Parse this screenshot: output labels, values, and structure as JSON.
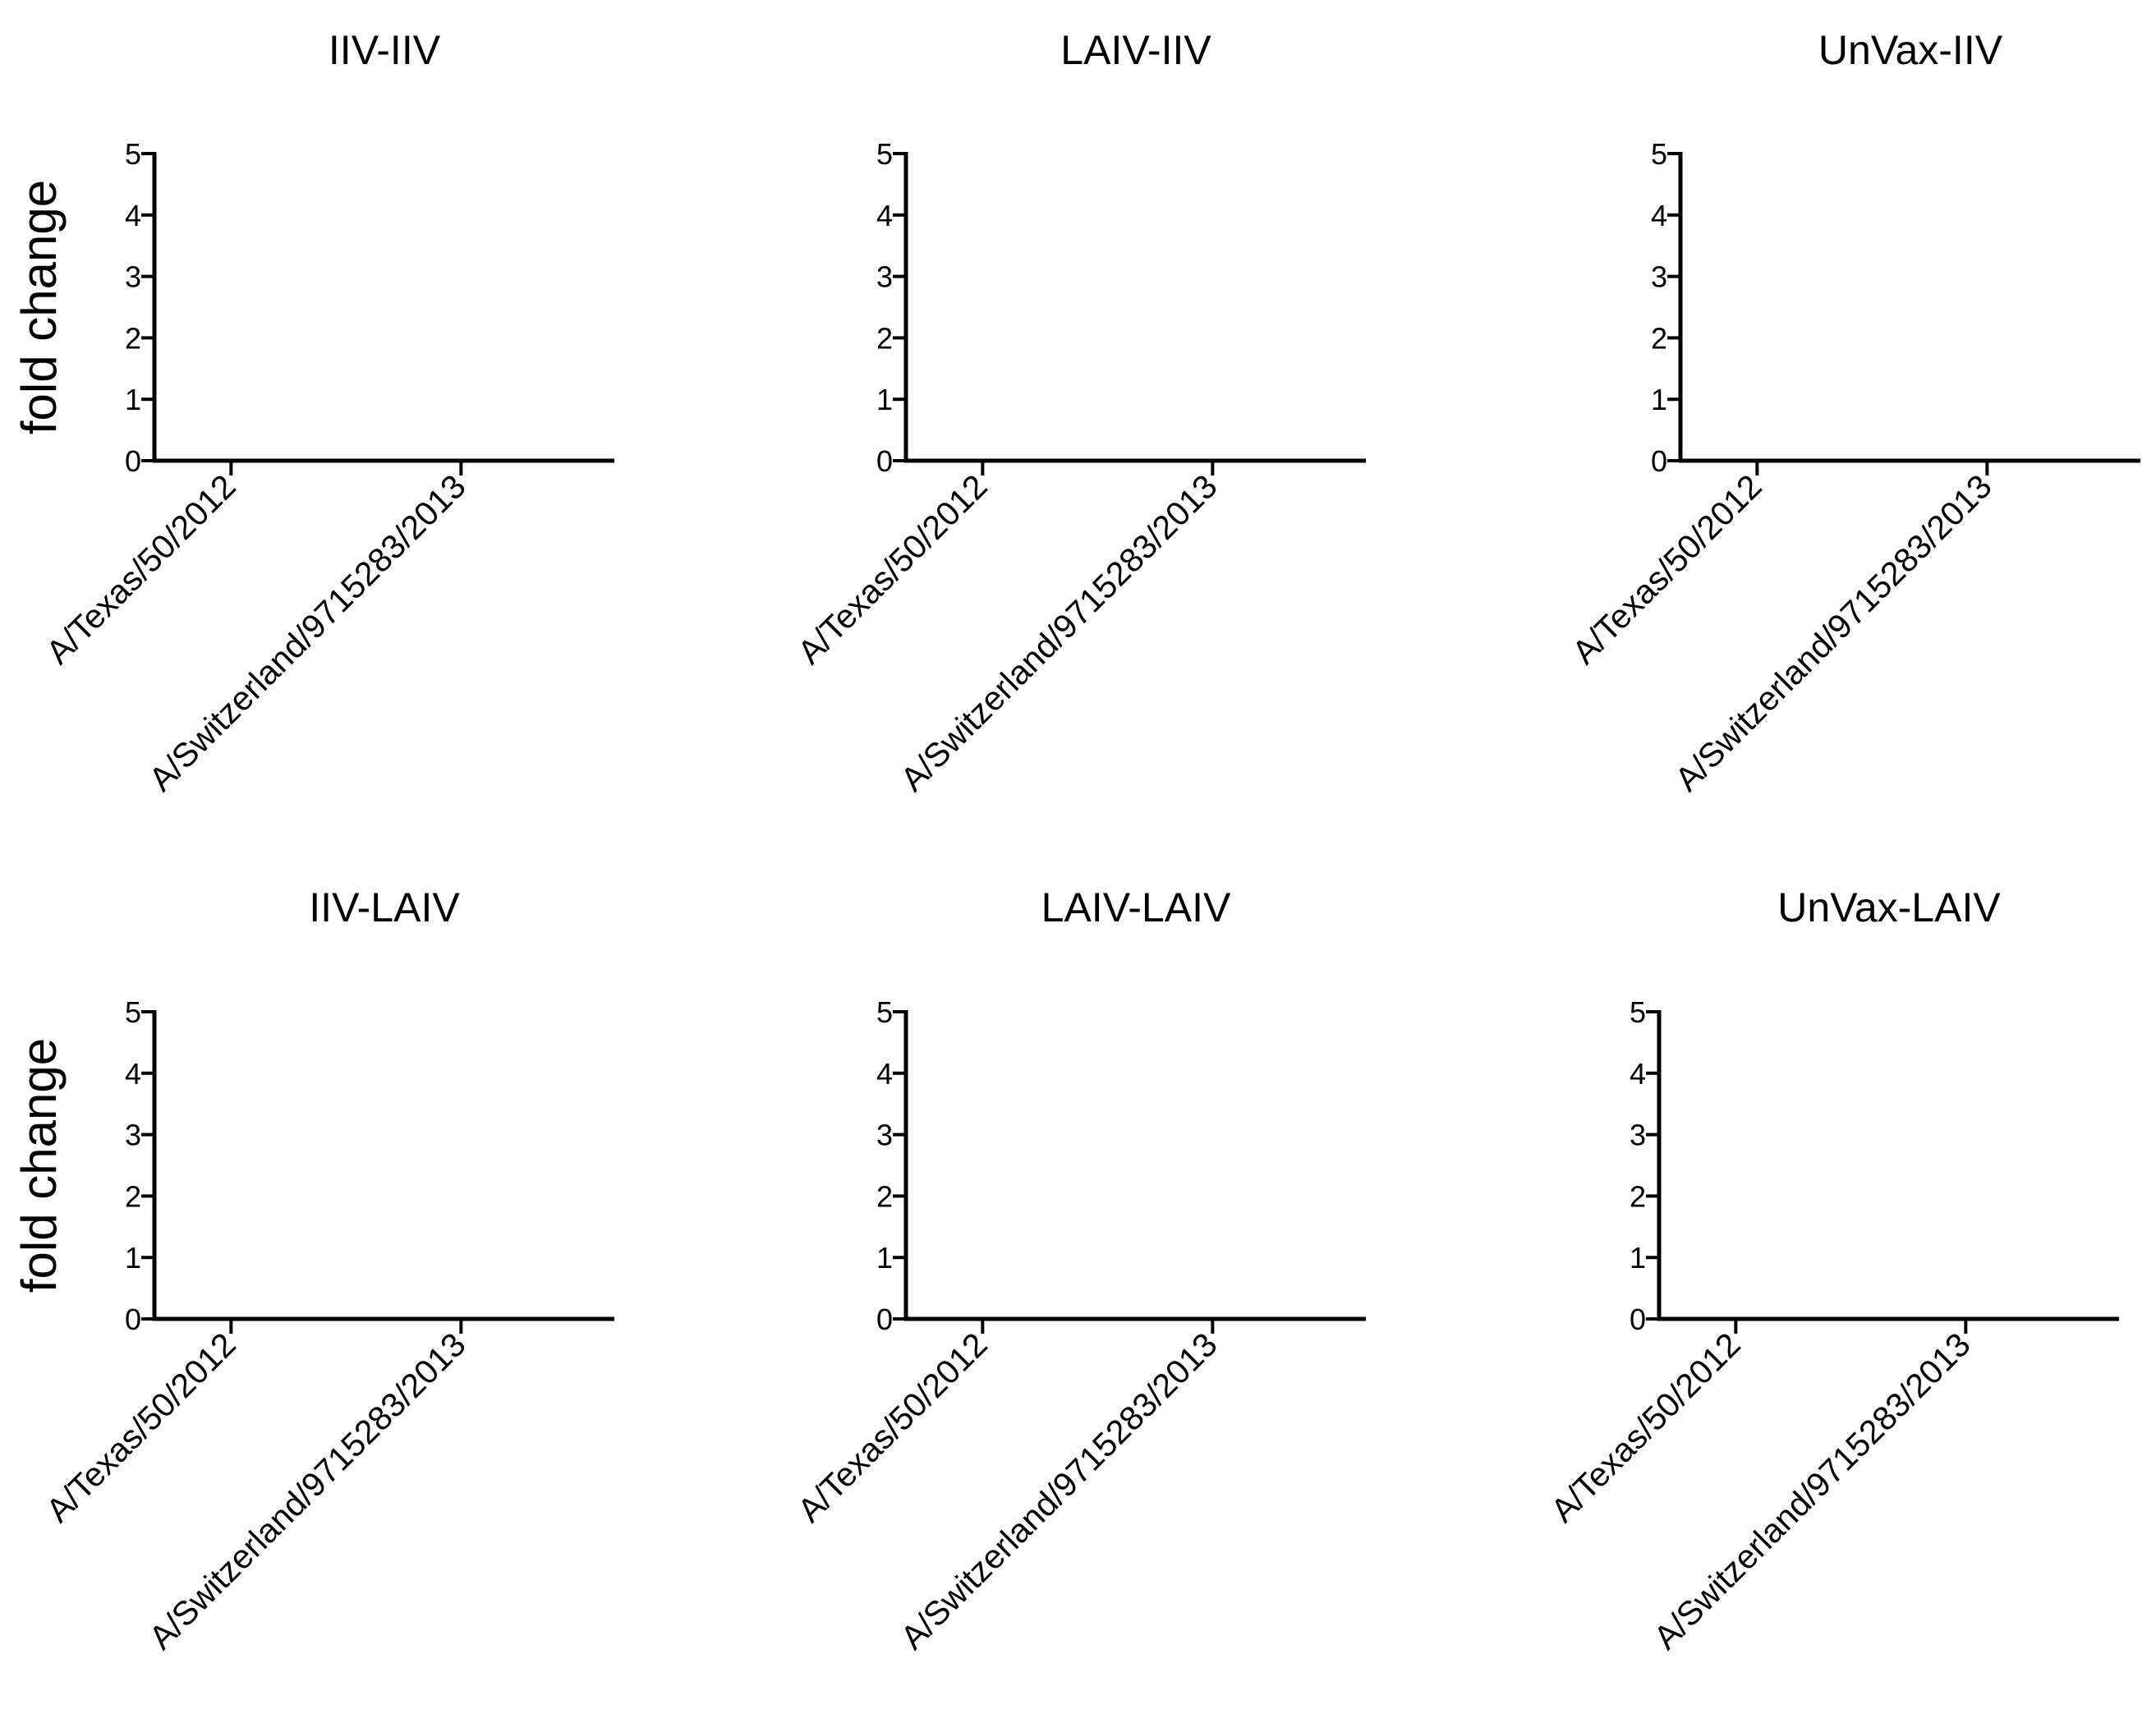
{
  "chart_data": [
    {
      "type": "bar",
      "title": "IIV-IIV",
      "ylabel": "fold change",
      "xlabel": "",
      "categories": [
        "A/Texas/50/2012",
        "A/Switzerland/9715283/2013"
      ],
      "values": [
        null,
        null
      ],
      "ylim": [
        0,
        5
      ],
      "yticks": [
        "0",
        "1",
        "2",
        "3",
        "4",
        "5"
      ],
      "grid": false,
      "legend": "none"
    },
    {
      "type": "bar",
      "title": "LAIV-IIV",
      "ylabel": "",
      "xlabel": "",
      "categories": [
        "A/Texas/50/2012",
        "A/Switzerland/9715283/2013"
      ],
      "values": [
        null,
        null
      ],
      "ylim": [
        0,
        5
      ],
      "yticks": [
        "0",
        "1",
        "2",
        "3",
        "4",
        "5"
      ],
      "grid": false,
      "legend": "none"
    },
    {
      "type": "bar",
      "title": "UnVax-IIV",
      "ylabel": "",
      "xlabel": "",
      "categories": [
        "A/Texas/50/2012",
        "A/Switzerland/9715283/2013"
      ],
      "values": [
        null,
        null
      ],
      "ylim": [
        0,
        5
      ],
      "yticks": [
        "0",
        "1",
        "2",
        "3",
        "4",
        "5"
      ],
      "grid": false,
      "legend": "none"
    },
    {
      "type": "bar",
      "title": "IIV-LAIV",
      "ylabel": "fold change",
      "xlabel": "",
      "categories": [
        "A/Texas/50/2012",
        "A/Switzerland/9715283/2013"
      ],
      "values": [
        null,
        null
      ],
      "ylim": [
        0,
        5
      ],
      "yticks": [
        "0",
        "1",
        "2",
        "3",
        "4",
        "5"
      ],
      "grid": false,
      "legend": "none"
    },
    {
      "type": "bar",
      "title": "LAIV-LAIV",
      "ylabel": "",
      "xlabel": "",
      "categories": [
        "A/Texas/50/2012",
        "A/Switzerland/9715283/2013"
      ],
      "values": [
        null,
        null
      ],
      "ylim": [
        0,
        5
      ],
      "yticks": [
        "0",
        "1",
        "2",
        "3",
        "4",
        "5"
      ],
      "grid": false,
      "legend": "none"
    },
    {
      "type": "bar",
      "title": "UnVax-LAIV",
      "ylabel": "",
      "xlabel": "",
      "categories": [
        "A/Texas/50/2012",
        "A/Switzerland/9715283/2013"
      ],
      "values": [
        null,
        null
      ],
      "ylim": [
        0,
        5
      ],
      "yticks": [
        "0",
        "1",
        "2",
        "3",
        "4",
        "5"
      ],
      "grid": false,
      "legend": "none"
    }
  ]
}
